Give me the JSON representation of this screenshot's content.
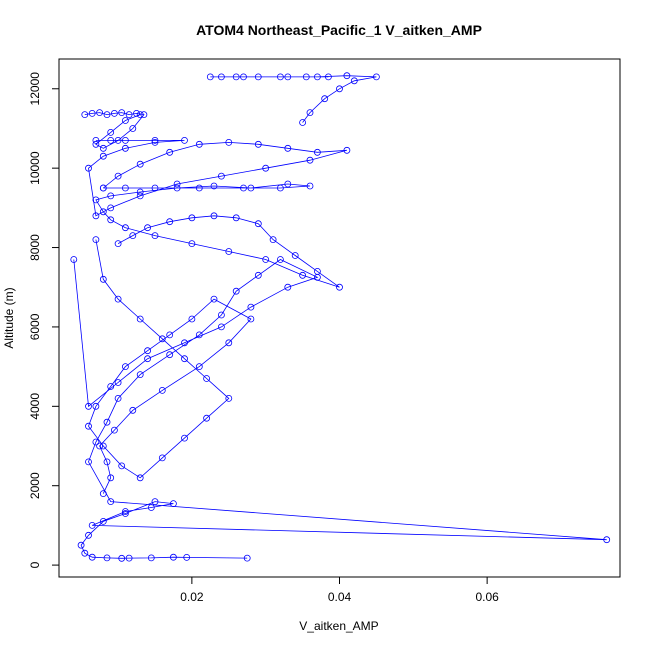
{
  "chart_data": {
    "type": "line",
    "title": "ATOM4 Northeast_Pacific_1 V_aitken_AMP",
    "xlabel": "V_aitken_AMP",
    "ylabel": "Altitude (m)",
    "xlim": [
      0.002,
      0.078
    ],
    "ylim": [
      -300,
      12750
    ],
    "xticks": [
      0.02,
      0.04,
      0.06
    ],
    "xtick_labels": [
      "0.02",
      "0.04",
      "0.06"
    ],
    "yticks": [
      0,
      2000,
      4000,
      6000,
      8000,
      10000,
      12000
    ],
    "ytick_labels": [
      "0",
      "2000",
      "4000",
      "6000",
      "8000",
      "10000",
      "12000"
    ],
    "grid": false,
    "legend": "none",
    "series_color": "#0000ff",
    "marker": "open-circle",
    "series": [
      {
        "x": [
          0.0275,
          0.0193,
          0.0175,
          0.0145,
          0.0115,
          0.0105,
          0.0085,
          0.0065,
          0.0055,
          0.005,
          0.006,
          0.008,
          0.011,
          0.015,
          0.0175,
          0.0145,
          0.011,
          0.0065,
          0.0762,
          0.009,
          0.006,
          0.007,
          0.0085,
          0.01,
          0.013,
          0.017,
          0.021,
          0.024,
          0.026,
          0.029,
          0.032,
          0.037,
          0.033,
          0.028,
          0.024,
          0.019,
          0.014,
          0.01,
          0.006,
          0.004
        ],
        "y": [
          175,
          195,
          200,
          180,
          175,
          170,
          180,
          200,
          300,
          500,
          750,
          1100,
          1300,
          1600,
          1550,
          1450,
          1350,
          1000,
          640,
          1600,
          2600,
          3100,
          3600,
          4200,
          4800,
          5300,
          5800,
          6300,
          6900,
          7300,
          7700,
          7250,
          7000,
          6500,
          6000,
          5600,
          5200,
          4600,
          4000,
          7700
        ]
      },
      {
        "x": [
          0.008,
          0.009,
          0.0085,
          0.0075,
          0.0095,
          0.012,
          0.016,
          0.021,
          0.025,
          0.028,
          0.023,
          0.02,
          0.017,
          0.014,
          0.011,
          0.009,
          0.007,
          0.006,
          0.008,
          0.0105,
          0.013,
          0.016,
          0.019,
          0.022,
          0.025,
          0.022,
          0.019,
          0.016,
          0.013,
          0.01,
          0.008,
          0.007
        ],
        "y": [
          1800,
          2200,
          2600,
          3000,
          3400,
          3900,
          4400,
          5000,
          5600,
          6200,
          6700,
          6200,
          5800,
          5400,
          5000,
          4500,
          4000,
          3500,
          3000,
          2500,
          2200,
          2700,
          3200,
          3700,
          4200,
          4700,
          5200,
          5700,
          6200,
          6700,
          7200,
          8200
        ]
      },
      {
        "x": [
          0.01,
          0.012,
          0.014,
          0.017,
          0.02,
          0.023,
          0.026,
          0.029,
          0.031,
          0.034,
          0.037,
          0.04,
          0.035,
          0.03,
          0.025,
          0.02,
          0.015,
          0.011,
          0.009,
          0.008,
          0.007,
          0.009,
          0.013,
          0.018,
          0.023,
          0.028,
          0.033,
          0.036,
          0.032,
          0.027,
          0.021,
          0.015,
          0.011,
          0.008
        ],
        "y": [
          8100,
          8300,
          8500,
          8650,
          8750,
          8800,
          8750,
          8600,
          8200,
          7800,
          7400,
          7000,
          7300,
          7700,
          7900,
          8100,
          8300,
          8500,
          8700,
          8900,
          9200,
          9300,
          9400,
          9500,
          9550,
          9500,
          9600,
          9550,
          9500,
          9500,
          9500,
          9500,
          9500,
          9500
        ]
      },
      {
        "x": [
          0.008,
          0.01,
          0.013,
          0.017,
          0.021,
          0.025,
          0.029,
          0.033,
          0.037,
          0.041,
          0.036,
          0.03,
          0.024,
          0.018,
          0.013,
          0.009,
          0.007,
          0.006,
          0.008,
          0.011,
          0.015,
          0.019,
          0.015,
          0.011,
          0.009,
          0.007
        ],
        "y": [
          9500,
          9800,
          10100,
          10400,
          10600,
          10650,
          10600,
          10500,
          10400,
          10450,
          10200,
          10000,
          9800,
          9600,
          9300,
          9000,
          8800,
          10000,
          10300,
          10500,
          10650,
          10700,
          10700,
          10700,
          10700,
          10700
        ]
      },
      {
        "x": [
          0.0055,
          0.0065,
          0.0075,
          0.0085,
          0.0095,
          0.0105,
          0.0115,
          0.0125,
          0.0135,
          0.012,
          0.01,
          0.008,
          0.007,
          0.009,
          0.011,
          0.013
        ],
        "y": [
          11350,
          11380,
          11400,
          11350,
          11380,
          11400,
          11350,
          11380,
          11350,
          11000,
          10700,
          10500,
          10600,
          10900,
          11200,
          11350
        ]
      },
      {
        "x": [
          0.035,
          0.036,
          0.038,
          0.04,
          0.042,
          0.045,
          0.041,
          0.037,
          0.033,
          0.029,
          0.026,
          0.024,
          0.0225,
          0.027,
          0.032,
          0.0355,
          0.0385
        ],
        "y": [
          11150,
          11400,
          11750,
          12000,
          12200,
          12300,
          12330,
          12300,
          12300,
          12300,
          12300,
          12300,
          12300,
          12300,
          12300,
          12300,
          12300
        ]
      }
    ]
  }
}
